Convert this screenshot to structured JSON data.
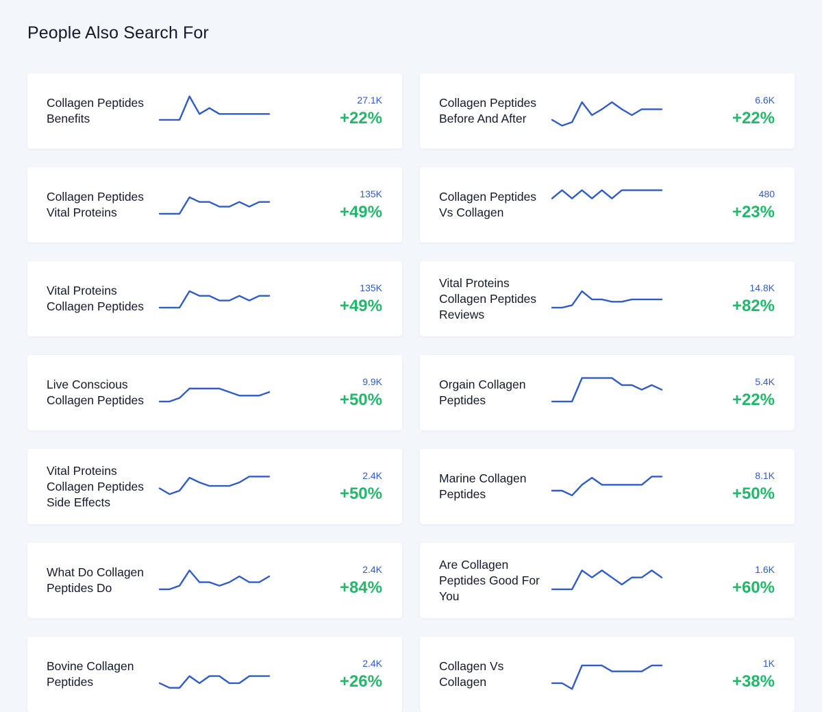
{
  "header": {
    "title": "People Also Search For"
  },
  "cards": [
    {
      "keyword": "Collagen Peptides Benefits",
      "volume": "27.1K",
      "change": "+22%",
      "trend": [
        3,
        3,
        3,
        5,
        3.5,
        4,
        3.5,
        3.5,
        3.5,
        3.5,
        3.5,
        3.5
      ]
    },
    {
      "keyword": "Collagen Peptides Before And After",
      "volume": "6.6K",
      "change": "+22%",
      "trend": [
        3,
        2.5,
        2.8,
        4.5,
        3.4,
        3.9,
        4.5,
        3.9,
        3.4,
        3.9,
        3.9,
        3.9
      ]
    },
    {
      "keyword": "Collagen Peptides Vital Proteins",
      "volume": "135K",
      "change": "+49%",
      "trend": [
        3,
        3,
        3,
        4.4,
        4,
        4,
        3.6,
        3.6,
        4,
        3.6,
        4,
        4
      ]
    },
    {
      "keyword": "Collagen Peptides Vs Collagen",
      "volume": "480",
      "change": "+23%",
      "trend": [
        4.3,
        5,
        4.3,
        5,
        4.3,
        5,
        4.3,
        5,
        5,
        5,
        5,
        5
      ]
    },
    {
      "keyword": "Vital Proteins Collagen Peptides",
      "volume": "135K",
      "change": "+49%",
      "trend": [
        3,
        3,
        3,
        4.4,
        4,
        4,
        3.6,
        3.6,
        4,
        3.6,
        4,
        4
      ]
    },
    {
      "keyword": "Vital Proteins Collagen Peptides Reviews",
      "volume": "14.8K",
      "change": "+82%",
      "trend": [
        3,
        3,
        3.2,
        4.4,
        3.7,
        3.7,
        3.5,
        3.5,
        3.7,
        3.7,
        3.7,
        3.7
      ]
    },
    {
      "keyword": "Live Conscious Collagen Peptides",
      "volume": "9.9K",
      "change": "+50%",
      "trend": [
        3,
        3,
        3.3,
        4.1,
        4.1,
        4.1,
        4.1,
        3.8,
        3.5,
        3.5,
        3.5,
        3.8
      ]
    },
    {
      "keyword": "Orgain Collagen Peptides",
      "volume": "5.4K",
      "change": "+22%",
      "trend": [
        3,
        3,
        3,
        5,
        5,
        5,
        5,
        4.4,
        4.4,
        4,
        4.4,
        4
      ]
    },
    {
      "keyword": "Vital Proteins Collagen Peptides Side Effects",
      "volume": "2.4K",
      "change": "+50%",
      "trend": [
        3.6,
        3.1,
        3.4,
        4.5,
        4.1,
        3.8,
        3.8,
        3.8,
        4.1,
        4.6,
        4.6,
        4.6
      ]
    },
    {
      "keyword": "Marine Collagen Peptides",
      "volume": "8.1K",
      "change": "+50%",
      "trend": [
        3.4,
        3.4,
        3,
        3.9,
        4.5,
        3.9,
        3.9,
        3.9,
        3.9,
        3.9,
        4.6,
        4.6
      ]
    },
    {
      "keyword": "What Do Collagen Peptides Do",
      "volume": "2.4K",
      "change": "+84%",
      "trend": [
        3,
        3,
        3.3,
        4.6,
        3.6,
        3.6,
        3.3,
        3.6,
        4.1,
        3.6,
        3.6,
        4.1
      ]
    },
    {
      "keyword": "Are Collagen Peptides Good For You",
      "volume": "1.6K",
      "change": "+60%",
      "trend": [
        3,
        3,
        3,
        4.6,
        4,
        4.6,
        4,
        3.4,
        4,
        4,
        4.6,
        4
      ]
    },
    {
      "keyword": "Bovine Collagen Peptides",
      "volume": "2.4K",
      "change": "+26%",
      "trend": [
        3,
        2.6,
        2.6,
        3.6,
        3,
        3.6,
        3.6,
        3,
        3,
        3.6,
        3.6,
        3.6
      ]
    },
    {
      "keyword": "Collagen Vs Collagen",
      "volume": "1K",
      "change": "+38%",
      "trend": [
        3,
        3,
        2.5,
        4.5,
        4.5,
        4.5,
        4,
        4,
        4,
        4,
        4.5,
        4.5
      ]
    }
  ]
}
